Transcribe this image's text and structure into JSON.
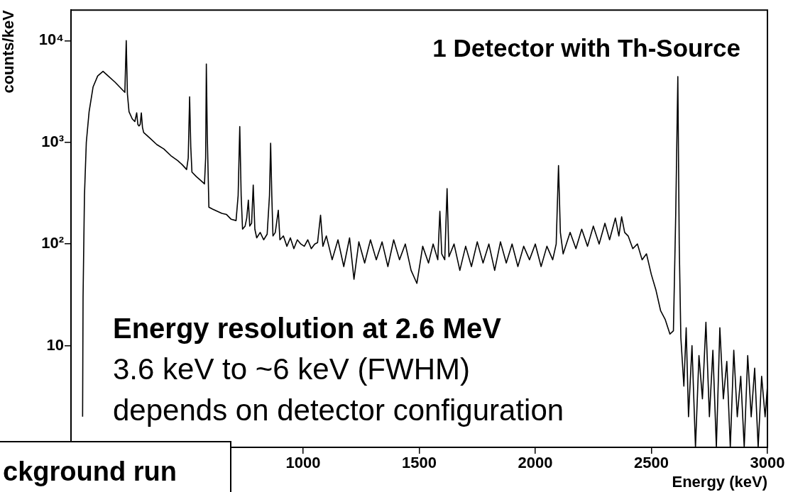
{
  "chart_data": {
    "type": "line",
    "title": "1 Detector with Th-Source",
    "xlabel": "Energy (keV)",
    "ylabel": "counts/keV",
    "annotations": [
      "Energy resolution at 2.6 MeV",
      "3.6 keV to ~6 keV (FWHM)",
      "depends on detector configuration",
      "ckground run"
    ],
    "x": [
      50,
      52,
      58,
      66,
      78,
      95,
      115,
      138,
      160,
      190,
      215,
      232,
      238,
      243,
      250,
      264,
      275,
      283,
      288,
      293,
      298,
      303,
      308,
      313,
      340,
      370,
      400,
      430,
      460,
      480,
      498,
      505,
      511,
      516,
      521,
      540,
      560,
      575,
      580,
      583,
      587,
      594,
      610,
      630,
      650,
      670,
      690,
      711,
      720,
      727,
      733,
      739,
      750,
      757,
      764,
      770,
      778,
      785,
      792,
      800,
      815,
      830,
      845,
      855,
      860,
      865,
      870,
      880,
      893,
      900,
      915,
      930,
      945,
      960,
      975,
      990,
      1005,
      1020,
      1035,
      1050,
      1062,
      1075,
      1085,
      1100,
      1125,
      1150,
      1175,
      1200,
      1219,
      1240,
      1265,
      1290,
      1315,
      1340,
      1365,
      1390,
      1415,
      1440,
      1465,
      1490,
      1515,
      1540,
      1560,
      1580,
      1589,
      1597,
      1610,
      1620,
      1628,
      1650,
      1675,
      1700,
      1725,
      1750,
      1775,
      1800,
      1825,
      1850,
      1875,
      1900,
      1925,
      1950,
      1975,
      2000,
      2025,
      2050,
      2075,
      2090,
      2100,
      2108,
      2120,
      2150,
      2175,
      2200,
      2225,
      2250,
      2275,
      2300,
      2320,
      2345,
      2360,
      2372,
      2385,
      2400,
      2420,
      2440,
      2460,
      2479,
      2500,
      2520,
      2540,
      2560,
      2580,
      2595,
      2605,
      2614,
      2620,
      2627,
      2640,
      2650,
      2660,
      2675,
      2690,
      2705,
      2720,
      2735,
      2750,
      2765,
      2780,
      2795,
      2810,
      2825,
      2840,
      2855,
      2870,
      2885,
      2900,
      2915,
      2930,
      2945,
      2960,
      2975,
      2990,
      3000
    ],
    "values": [
      2,
      30,
      300,
      1000,
      2000,
      3500,
      4500,
      5000,
      4500,
      3900,
      3400,
      3100,
      10000,
      3000,
      2000,
      1700,
      1600,
      1950,
      1500,
      1450,
      1500,
      1950,
      1400,
      1250,
      1100,
      950,
      860,
      740,
      660,
      600,
      540,
      700,
      2800,
      900,
      510,
      460,
      420,
      390,
      700,
      5900,
      1200,
      230,
      220,
      210,
      200,
      195,
      175,
      170,
      300,
      1430,
      300,
      140,
      150,
      180,
      270,
      150,
      160,
      380,
      140,
      115,
      130,
      110,
      125,
      300,
      980,
      300,
      120,
      130,
      215,
      110,
      120,
      95,
      115,
      90,
      110,
      100,
      95,
      110,
      90,
      100,
      103,
      192,
      95,
      120,
      70,
      110,
      60,
      115,
      45,
      105,
      65,
      110,
      70,
      105,
      60,
      110,
      70,
      100,
      55,
      41,
      95,
      65,
      100,
      70,
      210,
      80,
      70,
      350,
      75,
      100,
      55,
      95,
      60,
      105,
      65,
      100,
      55,
      105,
      65,
      100,
      60,
      95,
      70,
      100,
      60,
      95,
      70,
      100,
      590,
      130,
      80,
      130,
      90,
      140,
      95,
      150,
      100,
      160,
      110,
      180,
      120,
      185,
      130,
      120,
      90,
      100,
      70,
      80,
      50,
      35,
      22,
      18,
      13,
      14,
      200,
      4430,
      100,
      12,
      4,
      15,
      2,
      10,
      1,
      8,
      3,
      17,
      2,
      9,
      1,
      15,
      3,
      7,
      1,
      9,
      2,
      5,
      1,
      8,
      2,
      6,
      1,
      5,
      2,
      4
    ],
    "color": "#000000",
    "xlim": [
      0,
      3000
    ],
    "ylim": [
      1,
      20000
    ],
    "xticks": [
      {
        "value": 500,
        "label": null
      },
      1000,
      1500,
      2000,
      2500,
      3000
    ],
    "yticks": [
      {
        "value": 10,
        "label": "10"
      },
      {
        "value": 100,
        "label": "10²"
      },
      {
        "value": 1000,
        "label": "10³"
      },
      {
        "value": 10000,
        "label": "10⁴"
      }
    ],
    "log": "y",
    "grid": false,
    "legend": false,
    "marker": "none",
    "line_style": "solid"
  }
}
